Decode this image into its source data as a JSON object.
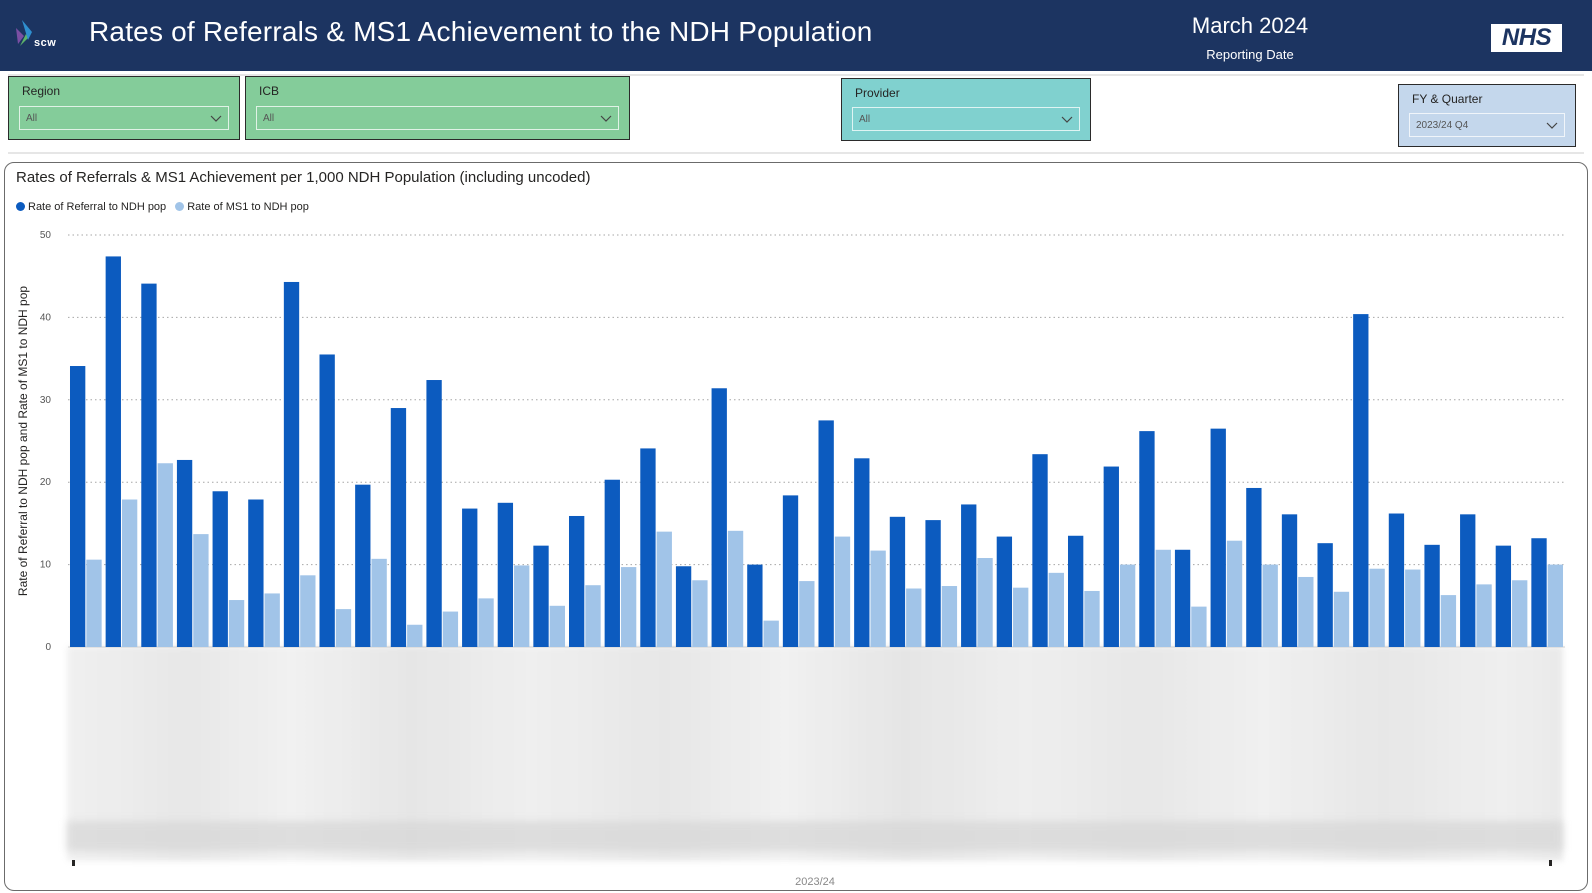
{
  "header": {
    "logo_text": "scw",
    "title": "Rates of Referrals & MS1 Achievement to the NDH Population",
    "report_date": "March 2024",
    "report_date_label": "Reporting Date",
    "nhs_logo": "NHS"
  },
  "colors": {
    "header_bg": "#1c3461",
    "slicer_green": "#84cc9a",
    "slicer_teal": "#80d1cf",
    "slicer_blue": "#c4d7ec",
    "series_referral": "#0c5bbf",
    "series_ms1": "#a1c4e8"
  },
  "filters": {
    "region": {
      "label": "Region",
      "value": "All"
    },
    "icb": {
      "label": "ICB",
      "value": "All"
    },
    "provider": {
      "label": "Provider",
      "value": "All"
    },
    "fy_quarter": {
      "label": "FY & Quarter",
      "value": "2023/24 Q4"
    }
  },
  "chart_data": {
    "type": "bar",
    "title": "Rates of Referrals & MS1 Achievement per 1,000 NDH Population (including uncoded)",
    "ylabel": "Rate of Referral to NDH pop and Rate of MS1 to NDH pop",
    "ylim": [
      0,
      50
    ],
    "yticks": [
      0,
      10,
      20,
      30,
      40,
      50
    ],
    "grid": true,
    "legend_position": "top-left",
    "xaxis_footer": "2023/24",
    "series": [
      {
        "name": "Rate of Referral to NDH pop",
        "values": [
          34.1,
          47.4,
          44.1,
          22.7,
          18.9,
          17.9,
          44.3,
          35.5,
          19.7,
          29.0,
          32.4,
          16.8,
          17.5,
          12.3,
          15.9,
          20.3,
          24.1,
          9.8,
          31.4,
          10.0,
          18.4,
          27.5,
          22.9,
          15.8,
          15.4,
          17.3,
          13.4,
          23.4,
          13.5,
          21.9,
          26.2,
          11.8,
          26.5,
          19.3,
          16.1,
          12.6,
          40.4,
          16.2,
          12.4,
          16.1,
          12.3,
          13.2
        ]
      },
      {
        "name": "Rate of MS1 to NDH pop",
        "values": [
          10.6,
          17.9,
          22.3,
          13.7,
          5.7,
          6.5,
          8.7,
          4.6,
          10.7,
          2.7,
          4.3,
          5.9,
          9.9,
          5.0,
          7.5,
          9.7,
          14.0,
          8.1,
          14.1,
          3.2,
          8.0,
          13.4,
          11.7,
          7.1,
          7.4,
          10.8,
          7.2,
          9.0,
          6.8,
          10.0,
          11.8,
          4.9,
          12.9,
          10.0,
          8.5,
          6.7,
          9.5,
          9.4,
          6.3,
          7.6,
          8.1,
          10.0
        ]
      }
    ]
  }
}
